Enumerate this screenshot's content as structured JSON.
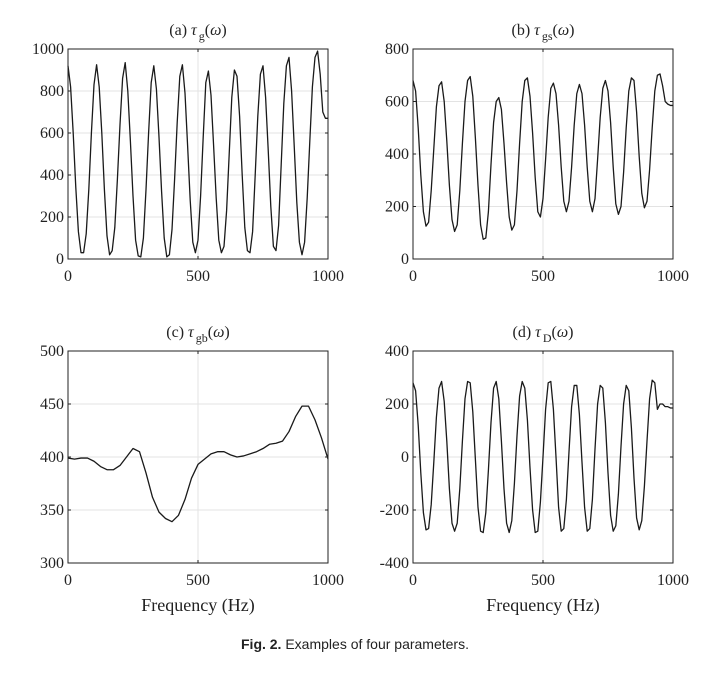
{
  "figure": {
    "caption_label": "Fig. 2.",
    "caption_text": "Examples of four parameters."
  },
  "chart_data": [
    {
      "type": "line",
      "title_prefix": "(a) ",
      "title_symbol": "τ",
      "title_sub": "g",
      "title_suffix": "(ω)",
      "xlabel": "",
      "ylabel": "",
      "xlim": [
        0,
        1000
      ],
      "ylim": [
        0,
        1000
      ],
      "xticks": [
        0,
        500,
        1000
      ],
      "yticks": [
        0,
        200,
        400,
        600,
        800,
        1000
      ],
      "grid": true,
      "series": [
        {
          "color": "#1a1a1a",
          "x": [
            0,
            10,
            20,
            30,
            40,
            50,
            60,
            70,
            80,
            90,
            100,
            110,
            120,
            130,
            140,
            150,
            160,
            170,
            180,
            190,
            200,
            210,
            220,
            230,
            240,
            250,
            260,
            270,
            280,
            290,
            300,
            310,
            320,
            330,
            340,
            350,
            360,
            370,
            380,
            390,
            400,
            410,
            420,
            430,
            440,
            450,
            460,
            470,
            480,
            490,
            500,
            510,
            520,
            530,
            540,
            550,
            560,
            570,
            580,
            590,
            600,
            610,
            620,
            630,
            640,
            650,
            660,
            670,
            680,
            690,
            700,
            710,
            720,
            730,
            740,
            750,
            760,
            770,
            780,
            790,
            800,
            810,
            820,
            830,
            840,
            850,
            860,
            870,
            880,
            890,
            900,
            910,
            920,
            930,
            940,
            950,
            960,
            970,
            980,
            990,
            1000
          ],
          "y": [
            920,
            820,
            600,
            340,
            130,
            30,
            30,
            120,
            330,
            600,
            830,
            925,
            820,
            600,
            330,
            110,
            20,
            40,
            150,
            380,
            640,
            860,
            935,
            800,
            560,
            300,
            90,
            15,
            10,
            100,
            330,
            600,
            840,
            920,
            810,
            580,
            320,
            100,
            10,
            20,
            140,
            380,
            650,
            870,
            925,
            790,
            540,
            280,
            80,
            30,
            90,
            300,
            580,
            840,
            895,
            780,
            540,
            290,
            90,
            30,
            60,
            230,
            500,
            770,
            900,
            870,
            680,
            400,
            150,
            40,
            30,
            130,
            400,
            680,
            880,
            920,
            770,
            520,
            250,
            60,
            40,
            160,
            450,
            740,
            920,
            960,
            800,
            540,
            270,
            80,
            20,
            80,
            290,
            560,
            820,
            960,
            990,
            880,
            700,
            670,
            670
          ]
        }
      ]
    },
    {
      "type": "line",
      "title_prefix": "(b) ",
      "title_symbol": "τ",
      "title_sub": "gs",
      "title_suffix": "(ω)",
      "xlabel": "",
      "ylabel": "",
      "xlim": [
        0,
        1000
      ],
      "ylim": [
        0,
        800
      ],
      "xticks": [
        0,
        500,
        1000
      ],
      "yticks": [
        0,
        200,
        400,
        600,
        800
      ],
      "grid": true,
      "series": [
        {
          "color": "#1a1a1a",
          "x": [
            0,
            10,
            20,
            30,
            40,
            50,
            60,
            70,
            80,
            90,
            100,
            110,
            120,
            130,
            140,
            150,
            160,
            170,
            180,
            190,
            200,
            210,
            220,
            230,
            240,
            250,
            260,
            270,
            280,
            290,
            300,
            310,
            320,
            330,
            340,
            350,
            360,
            370,
            380,
            390,
            400,
            410,
            420,
            430,
            440,
            450,
            460,
            470,
            480,
            490,
            500,
            510,
            520,
            530,
            540,
            550,
            560,
            570,
            580,
            590,
            600,
            610,
            620,
            630,
            640,
            650,
            660,
            670,
            680,
            690,
            700,
            710,
            720,
            730,
            740,
            750,
            760,
            770,
            780,
            790,
            800,
            810,
            820,
            830,
            840,
            850,
            860,
            870,
            880,
            890,
            900,
            910,
            920,
            930,
            940,
            950,
            960,
            970,
            980,
            990,
            1000
          ],
          "y": [
            680,
            640,
            500,
            320,
            180,
            125,
            140,
            260,
            420,
            580,
            660,
            675,
            600,
            450,
            280,
            150,
            105,
            130,
            260,
            440,
            600,
            680,
            695,
            620,
            460,
            280,
            130,
            75,
            80,
            180,
            360,
            520,
            600,
            615,
            570,
            440,
            290,
            160,
            110,
            130,
            260,
            440,
            600,
            680,
            690,
            620,
            480,
            310,
            180,
            160,
            230,
            380,
            540,
            650,
            670,
            630,
            510,
            350,
            220,
            180,
            220,
            350,
            510,
            630,
            665,
            630,
            510,
            350,
            220,
            180,
            230,
            380,
            540,
            650,
            680,
            640,
            520,
            350,
            210,
            170,
            200,
            330,
            500,
            640,
            690,
            680,
            560,
            390,
            250,
            195,
            220,
            340,
            500,
            640,
            700,
            705,
            660,
            600,
            590,
            585,
            585
          ]
        }
      ]
    },
    {
      "type": "line",
      "title_prefix": "(c) ",
      "title_symbol": "τ",
      "title_sub": "gb",
      "title_suffix": "(ω)",
      "xlabel": "Frequency (Hz)",
      "ylabel": "",
      "xlim": [
        0,
        1000
      ],
      "ylim": [
        300,
        500
      ],
      "xticks": [
        0,
        500,
        1000
      ],
      "yticks": [
        300,
        350,
        400,
        450,
        500
      ],
      "grid": true,
      "series": [
        {
          "color": "#1a1a1a",
          "x": [
            0,
            25,
            50,
            75,
            100,
            125,
            150,
            175,
            200,
            225,
            250,
            275,
            300,
            325,
            350,
            375,
            400,
            425,
            450,
            475,
            500,
            525,
            550,
            575,
            600,
            625,
            650,
            675,
            700,
            725,
            750,
            775,
            800,
            825,
            850,
            875,
            900,
            925,
            950,
            975,
            1000
          ],
          "y": [
            399,
            398,
            399,
            399,
            396,
            391,
            388,
            388,
            392,
            400,
            408,
            405,
            385,
            362,
            348,
            342,
            339,
            345,
            360,
            380,
            393,
            398,
            403,
            405,
            405,
            402,
            400,
            401,
            403,
            405,
            408,
            412,
            413,
            415,
            424,
            438,
            448,
            448,
            435,
            418,
            398
          ]
        }
      ]
    },
    {
      "type": "line",
      "title_prefix": "(d) ",
      "title_symbol": "τ",
      "title_sub": "D",
      "title_suffix": "(ω)",
      "xlabel": "Frequency (Hz)",
      "ylabel": "",
      "xlim": [
        0,
        1000
      ],
      "ylim": [
        -400,
        400
      ],
      "xticks": [
        0,
        500,
        1000
      ],
      "yticks": [
        -400,
        -200,
        0,
        200,
        400
      ],
      "grid": true,
      "series": [
        {
          "color": "#1a1a1a",
          "x": [
            0,
            10,
            20,
            30,
            40,
            50,
            60,
            70,
            80,
            90,
            100,
            110,
            120,
            130,
            140,
            150,
            160,
            170,
            180,
            190,
            200,
            210,
            220,
            230,
            240,
            250,
            260,
            270,
            280,
            290,
            300,
            310,
            320,
            330,
            340,
            350,
            360,
            370,
            380,
            390,
            400,
            410,
            420,
            430,
            440,
            450,
            460,
            470,
            480,
            490,
            500,
            510,
            520,
            530,
            540,
            550,
            560,
            570,
            580,
            590,
            600,
            610,
            620,
            630,
            640,
            650,
            660,
            670,
            680,
            690,
            700,
            710,
            720,
            730,
            740,
            750,
            760,
            770,
            780,
            790,
            800,
            810,
            820,
            830,
            840,
            850,
            860,
            870,
            880,
            890,
            900,
            910,
            920,
            930,
            940,
            950,
            960,
            970,
            980,
            990,
            1000
          ],
          "y": [
            280,
            250,
            120,
            -60,
            -210,
            -275,
            -270,
            -180,
            -20,
            150,
            260,
            285,
            210,
            60,
            -120,
            -250,
            -280,
            -250,
            -120,
            60,
            220,
            285,
            280,
            170,
            -10,
            -190,
            -280,
            -285,
            -210,
            -50,
            130,
            260,
            285,
            220,
            60,
            -120,
            -250,
            -285,
            -240,
            -100,
            80,
            230,
            285,
            260,
            140,
            -40,
            -200,
            -285,
            -280,
            -170,
            0,
            180,
            280,
            285,
            180,
            0,
            -190,
            -280,
            -270,
            -160,
            20,
            190,
            270,
            270,
            160,
            -20,
            -190,
            -280,
            -270,
            -160,
            30,
            200,
            270,
            260,
            130,
            -60,
            -220,
            -280,
            -260,
            -140,
            40,
            200,
            270,
            250,
            110,
            -80,
            -230,
            -275,
            -240,
            -110,
            60,
            220,
            290,
            280,
            180,
            200,
            200,
            190,
            190,
            185,
            185
          ]
        }
      ]
    }
  ]
}
